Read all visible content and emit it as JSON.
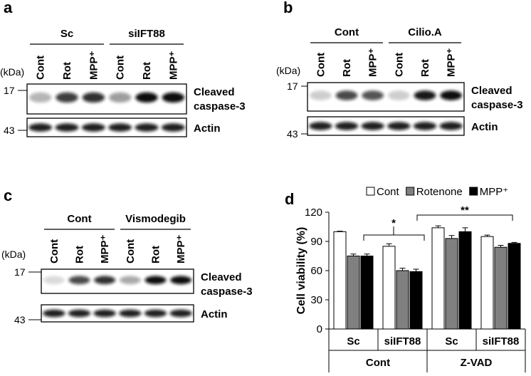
{
  "blots": [
    {
      "label": "a",
      "groups": [
        {
          "name": "Sc",
          "lanes": [
            "Cont",
            "Rot",
            "MPP⁺"
          ]
        },
        {
          "name": "siIFT88",
          "lanes": [
            "Cont",
            "Rot",
            "MPP⁺"
          ]
        }
      ],
      "kda": "(kDa)",
      "markers": [
        "17",
        "43"
      ],
      "bands": [
        [
          "Cleaved",
          "caspase-3"
        ],
        [
          "Actin"
        ]
      ]
    },
    {
      "label": "b",
      "groups": [
        {
          "name": "Cont",
          "lanes": [
            "Cont",
            "Rot",
            "MPP⁺"
          ]
        },
        {
          "name": "Cilio.A",
          "lanes": [
            "Cont",
            "Rot",
            "MPP⁺"
          ]
        }
      ],
      "kda": "(kDa)",
      "markers": [
        "17",
        "43"
      ],
      "bands": [
        [
          "Cleaved",
          "caspase-3"
        ],
        [
          "Actin"
        ]
      ]
    },
    {
      "label": "c",
      "groups": [
        {
          "name": "Cont",
          "lanes": [
            "Cont",
            "Rot",
            "MPP⁺"
          ]
        },
        {
          "name": "Vismodegib",
          "lanes": [
            "Cont",
            "Rot",
            "MPP⁺"
          ]
        }
      ],
      "kda": "(kDa)",
      "markers": [
        "17",
        "43"
      ],
      "bands": [
        [
          "Cleaved",
          "caspase-3"
        ],
        [
          "Actin"
        ]
      ]
    }
  ],
  "chart_data": {
    "type": "bar",
    "panel_label": "d",
    "ylabel": "Cell viability (%)",
    "categories": [
      "Sc",
      "siIFT88",
      "Sc",
      "siIFT88"
    ],
    "group_labels": [
      "Cont",
      "Z-VAD"
    ],
    "series": [
      {
        "name": "Cont",
        "color": "#ffffff",
        "values": [
          100,
          85,
          104,
          95
        ],
        "errors": [
          0.5,
          2.5,
          2,
          1.5
        ]
      },
      {
        "name": "Rotenone",
        "color": "#808080",
        "values": [
          75,
          60,
          93,
          84
        ],
        "errors": [
          2,
          2.5,
          3,
          2
        ]
      },
      {
        "name": "MPP⁺",
        "color": "#000000",
        "values": [
          75,
          59,
          100,
          88
        ],
        "errors": [
          2,
          2.5,
          4,
          1
        ]
      }
    ],
    "ylim": [
      0,
      120
    ],
    "yticks": [
      0,
      30,
      60,
      90,
      120
    ],
    "annotations": [
      "*",
      "**"
    ]
  }
}
